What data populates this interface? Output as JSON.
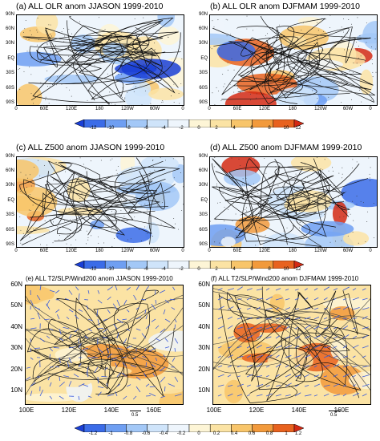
{
  "panels": {
    "a": {
      "title": "(a)  ALL OLR anom JJASON 1999-2010"
    },
    "b": {
      "title": "(b)  ALL OLR anom DJFMAM 1999-2010"
    },
    "c": {
      "title": "(c)  ALL Z500 anom JJASON 1999-2010"
    },
    "d": {
      "title": "(d)  ALL Z500 anom DJFMAM 1999-2010"
    },
    "e": {
      "title": "(e)  ALL T2/SLP/Wind200 anom JJASON 1999-2010",
      "ref_vector": "0.5"
    },
    "f": {
      "title": "(f)  ALL T2/SLP/Wind200 anom DJFMAM 1999-2010",
      "ref_vector": "0.5"
    }
  },
  "global_axes": {
    "lat_labels": [
      "90N",
      "60N",
      "30N",
      "EQ",
      "30S",
      "60S",
      "90S"
    ],
    "lon_labels": [
      "0",
      "60E",
      "120E",
      "180",
      "120W",
      "60W",
      "0"
    ]
  },
  "regional_axes": {
    "lat_labels": [
      "60N",
      "50N",
      "40N",
      "30N",
      "20N",
      "10N"
    ],
    "lon_labels": [
      "100E",
      "120E",
      "140E",
      "160E"
    ]
  },
  "colorbars": {
    "olr": {
      "labels": [
        "-12",
        "-10",
        "-8",
        "-6",
        "-4",
        "-2",
        "0",
        "2",
        "4",
        "6",
        "8",
        "10",
        "12"
      ]
    },
    "z500": {
      "labels": [
        "-12",
        "-10",
        "-8",
        "-6",
        "-4",
        "-2",
        "0",
        "2",
        "4",
        "6",
        "8",
        "10",
        "12"
      ]
    },
    "t2": {
      "labels": [
        "-1.2",
        "-1",
        "-0.8",
        "-0.6",
        "-0.4",
        "-0.2",
        "0",
        "0.2",
        "0.4",
        "0.6",
        "0.8",
        "1",
        "1.2"
      ]
    }
  },
  "colors": {
    "scale": [
      "#1a3fd6",
      "#3b6ce8",
      "#6f9ff2",
      "#a3c8f7",
      "#cfe4fa",
      "#eef5fc",
      "#fdf5d6",
      "#fbe3a4",
      "#f8c56a",
      "#f29a3c",
      "#e8621f",
      "#d42a14"
    ]
  }
}
